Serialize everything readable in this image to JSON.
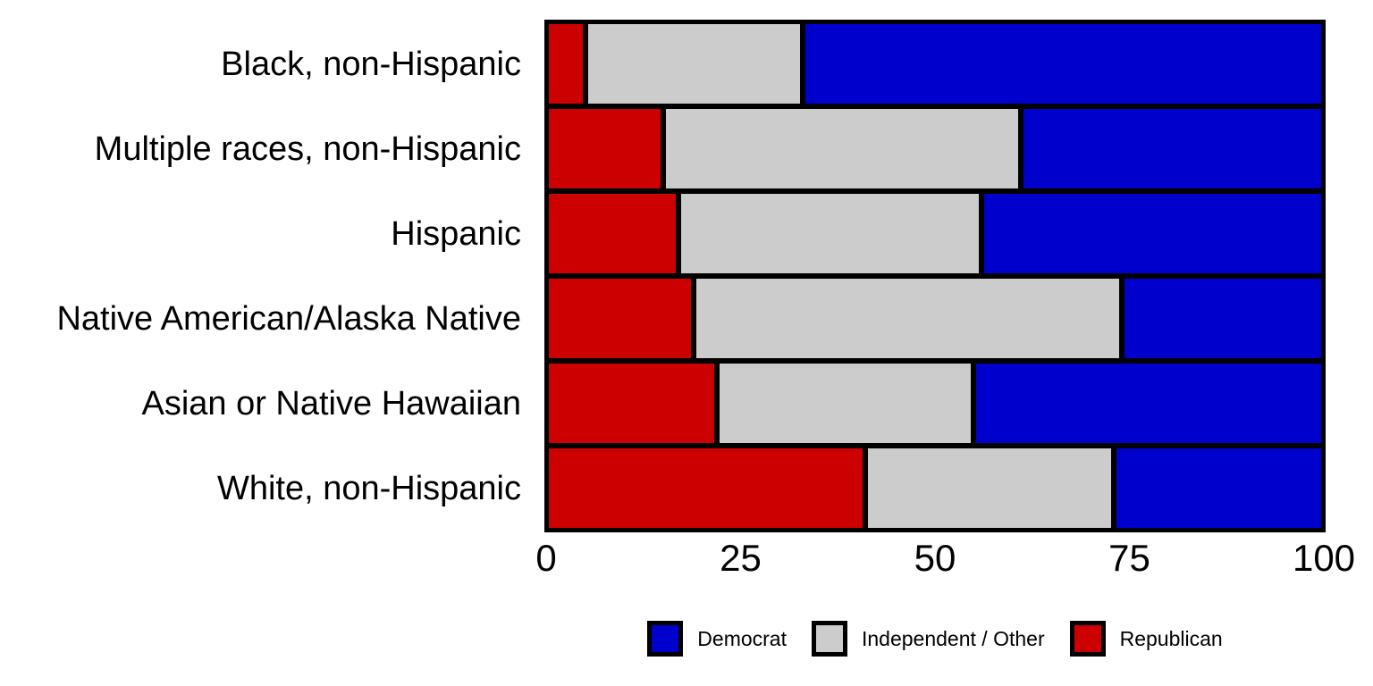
{
  "chart_data": {
    "type": "bar",
    "orientation": "horizontal",
    "stacked": true,
    "title": "",
    "xlabel": "",
    "ylabel": "",
    "xlim": [
      0,
      100
    ],
    "grid": false,
    "legend_position": "bottom",
    "categories": [
      "Black, non-Hispanic",
      "Multiple races, non-Hispanic",
      "Hispanic",
      "Native American/Alaska Native",
      "Asian or Native Hawaiian",
      "White, non-Hispanic"
    ],
    "series": [
      {
        "name": "Republican",
        "color": "#CC0000",
        "values": [
          5,
          15,
          17,
          19,
          22,
          41
        ]
      },
      {
        "name": "Independent / Other",
        "color": "#CCCCCC",
        "values": [
          28,
          46,
          39,
          55,
          33,
          32
        ]
      },
      {
        "name": "Democrat",
        "color": "#0000CC",
        "values": [
          67,
          39,
          44,
          26,
          45,
          27
        ]
      }
    ],
    "x_ticks": [
      {
        "label": "0",
        "value": 0
      },
      {
        "label": "25",
        "value": 25
      },
      {
        "label": "50",
        "value": 50
      },
      {
        "label": "75",
        "value": 75
      },
      {
        "label": "100",
        "value": 100
      }
    ],
    "legend": [
      {
        "label": "Democrat",
        "color": "#0000CC"
      },
      {
        "label": "Independent / Other",
        "color": "#CCCCCC"
      },
      {
        "label": "Republican",
        "color": "#CC0000"
      }
    ],
    "colors": {
      "border": "#000000",
      "background": "#FFFFFF",
      "text": "#000000"
    }
  }
}
